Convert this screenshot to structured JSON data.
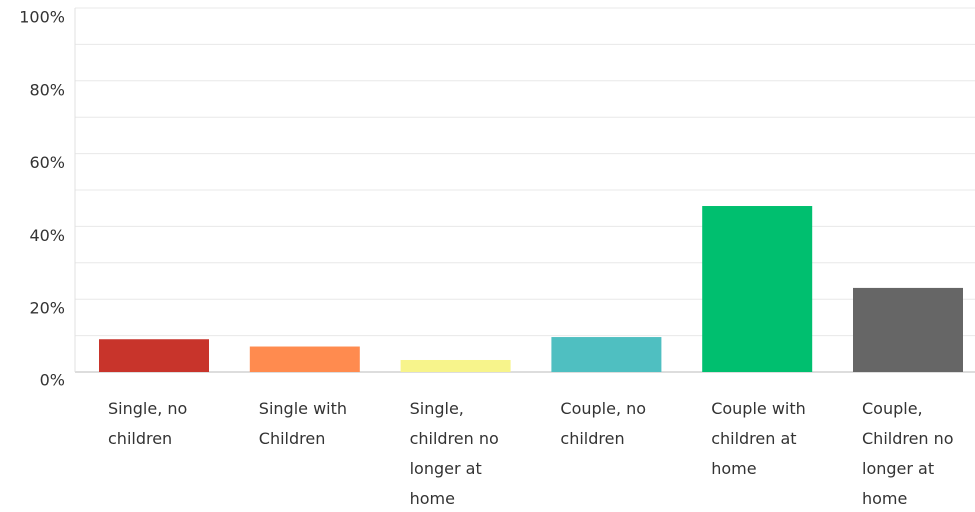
{
  "chart_data": {
    "type": "bar",
    "categories": [
      "Single, no children",
      "Single with Children",
      "Single, children no longer at home",
      "Couple, no children",
      "Couple with children at home",
      "Couple, Children no longer at home"
    ],
    "values": [
      9,
      7,
      3.3,
      9.6,
      45.6,
      23.1
    ],
    "colors": [
      "#c8342b",
      "#ff8b4f",
      "#f7f48b",
      "#4fbfc1",
      "#00bf6f",
      "#666666"
    ],
    "ylim": [
      0,
      100
    ],
    "yticks": [
      {
        "value": 0,
        "label": "0%"
      },
      {
        "value": 20,
        "label": "20%"
      },
      {
        "value": 40,
        "label": "40%"
      },
      {
        "value": 60,
        "label": "60%"
      },
      {
        "value": 80,
        "label": "80%"
      },
      {
        "value": 100,
        "label": "100%"
      }
    ],
    "minor_yticks": [
      10,
      30,
      50,
      70,
      90
    ],
    "grid": true
  }
}
